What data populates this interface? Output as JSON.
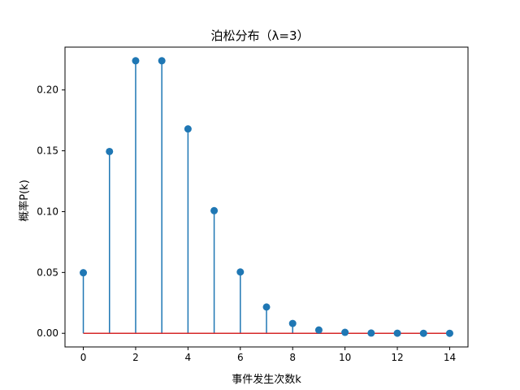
{
  "chart_data": {
    "type": "stem",
    "title": "泊松分布（λ=3）",
    "xlabel": "事件发生次数k",
    "ylabel": "概率P(k)",
    "xlim": [
      -0.7,
      14.7
    ],
    "ylim": [
      -0.0112,
      0.2352
    ],
    "x_ticks": [
      0,
      2,
      4,
      6,
      8,
      10,
      12,
      14
    ],
    "y_ticks": [
      0.0,
      0.05,
      0.1,
      0.15,
      0.2
    ],
    "y_tick_labels": [
      "0.00",
      "0.05",
      "0.10",
      "0.15",
      "0.20"
    ],
    "x": [
      0,
      1,
      2,
      3,
      4,
      5,
      6,
      7,
      8,
      9,
      10,
      11,
      12,
      13,
      14
    ],
    "values": [
      0.0498,
      0.1494,
      0.224,
      0.224,
      0.168,
      0.1008,
      0.0504,
      0.0216,
      0.0081,
      0.0027,
      0.0008,
      0.0002,
      0.0001,
      0.0,
      0.0
    ],
    "baseline": 0,
    "colors": {
      "stem": "#1f77b4",
      "marker": "#1f77b4",
      "baseline": "#d62728"
    },
    "grid": false,
    "legend": "none"
  }
}
